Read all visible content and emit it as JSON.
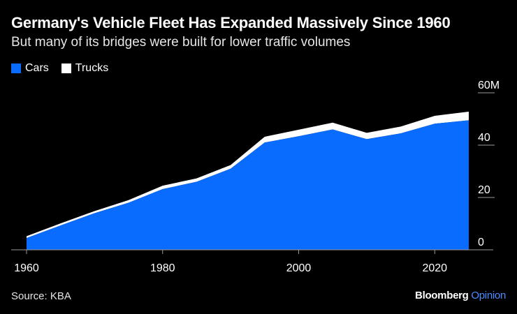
{
  "header": {
    "title": "Germany's Vehicle Fleet Has Expanded Massively Since 1960",
    "subtitle": "But many of its bridges were built for lower traffic volumes"
  },
  "footer": {
    "source": "Source: KBA",
    "brand_main": "Bloomberg",
    "brand_accent": "Opinion"
  },
  "colors": {
    "cars": "#0a6cff",
    "trucks": "#ffffff",
    "background": "#000000",
    "brand_accent": "#4d8dff"
  },
  "chart_data": {
    "type": "area",
    "stacked": true,
    "title": "Germany's Vehicle Fleet Has Expanded Massively Since 1960",
    "subtitle": "But many of its bridges were built for lower traffic volumes",
    "x": [
      1960,
      1965,
      1970,
      1975,
      1980,
      1985,
      1990,
      1995,
      2000,
      2005,
      2010,
      2015,
      2020,
      2025
    ],
    "series": [
      {
        "name": "Cars",
        "color": "#0a6cff",
        "values": [
          4.5,
          9.3,
          14.0,
          18.0,
          23.2,
          26.0,
          31.0,
          41.0,
          43.4,
          46.0,
          42.3,
          44.5,
          48.2,
          49.5
        ]
      },
      {
        "name": "Trucks",
        "color": "#ffffff",
        "values": [
          0.7,
          0.8,
          0.8,
          1.0,
          1.3,
          1.3,
          1.4,
          2.2,
          2.5,
          2.6,
          2.4,
          2.6,
          3.0,
          3.3
        ]
      }
    ],
    "ylim": [
      0,
      60
    ],
    "yticks": [
      0,
      20,
      40,
      60
    ],
    "ytick_labels": [
      "0",
      "20",
      "40",
      "60M"
    ],
    "xticks": [
      1960,
      1980,
      2000,
      2020
    ],
    "xtick_labels": [
      "1960",
      "1980",
      "2000",
      "2020"
    ],
    "xlabel": "",
    "ylabel": "",
    "legend_position": "top-left",
    "y_axis_side": "right"
  }
}
